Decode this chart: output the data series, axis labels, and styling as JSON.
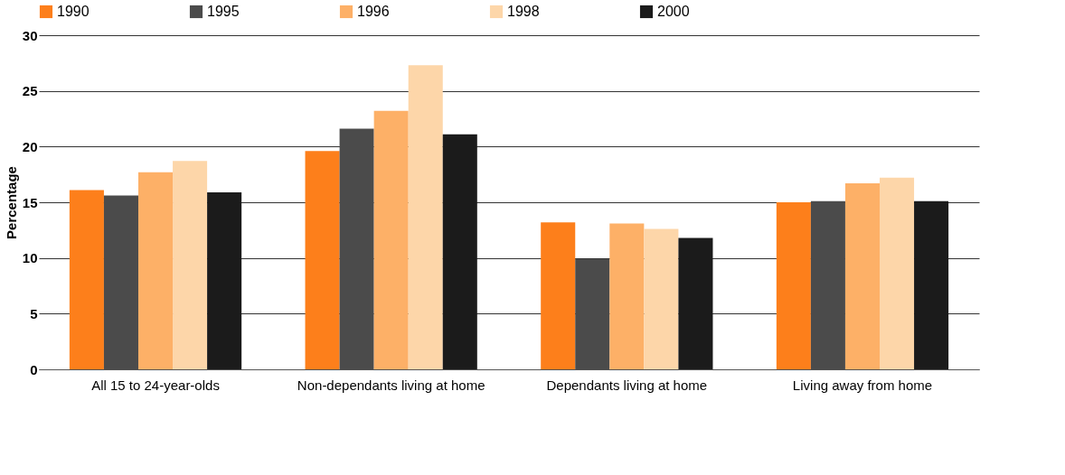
{
  "chart_data": {
    "type": "bar",
    "ylabel": "Percentage",
    "categories": [
      "All 15 to 24-year-olds",
      "Non-dependants living at home",
      "Dependants living at home",
      "Living away from home"
    ],
    "series": [
      {
        "name": "1990",
        "color": "#fd7f1b",
        "values": [
          16.1,
          19.6,
          13.2,
          15.0
        ]
      },
      {
        "name": "1995",
        "color": "#4b4b4b",
        "values": [
          15.6,
          21.6,
          9.9,
          15.1
        ]
      },
      {
        "name": "1996",
        "color": "#fdb067",
        "values": [
          17.7,
          23.2,
          13.1,
          16.7
        ]
      },
      {
        "name": "1998",
        "color": "#fdd6a9",
        "values": [
          18.7,
          27.3,
          12.6,
          17.2
        ]
      },
      {
        "name": "2000",
        "color": "#1b1b1b",
        "values": [
          15.9,
          21.1,
          11.8,
          15.1
        ]
      }
    ],
    "ylim": [
      0,
      30
    ],
    "yticks": [
      0,
      5,
      10,
      15,
      20,
      25,
      30
    ],
    "grid": "y",
    "legend": "top"
  }
}
